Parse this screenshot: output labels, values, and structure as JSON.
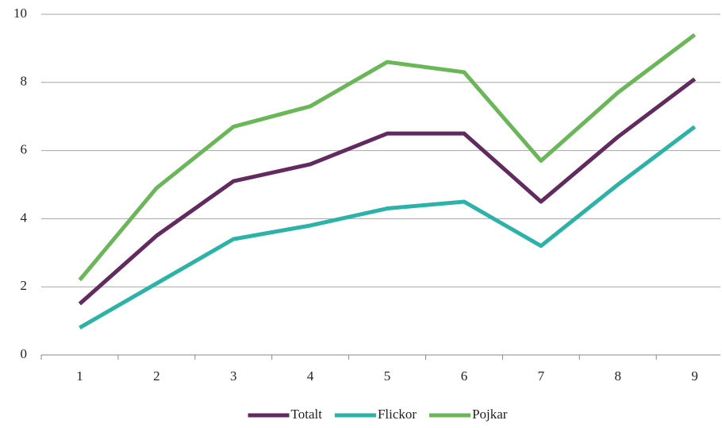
{
  "chart_data": {
    "type": "line",
    "categories": [
      "1",
      "2",
      "3",
      "4",
      "5",
      "6",
      "7",
      "8",
      "9"
    ],
    "series": [
      {
        "name": "Totalt",
        "color": "#622a5f",
        "values": [
          1.5,
          3.5,
          5.1,
          5.6,
          6.5,
          6.5,
          4.5,
          6.4,
          8.1
        ]
      },
      {
        "name": "Flickor",
        "color": "#2bb3a8",
        "values": [
          0.8,
          2.1,
          3.4,
          3.8,
          4.3,
          4.5,
          3.2,
          5.0,
          6.7
        ]
      },
      {
        "name": "Pojkar",
        "color": "#6ab758",
        "values": [
          2.2,
          4.9,
          6.7,
          7.3,
          8.6,
          8.3,
          5.7,
          7.7,
          9.4
        ]
      }
    ],
    "ylim": [
      0,
      10
    ],
    "yticks": [
      0,
      2,
      4,
      6,
      8,
      10
    ],
    "grid": true,
    "legend": "bottom"
  }
}
